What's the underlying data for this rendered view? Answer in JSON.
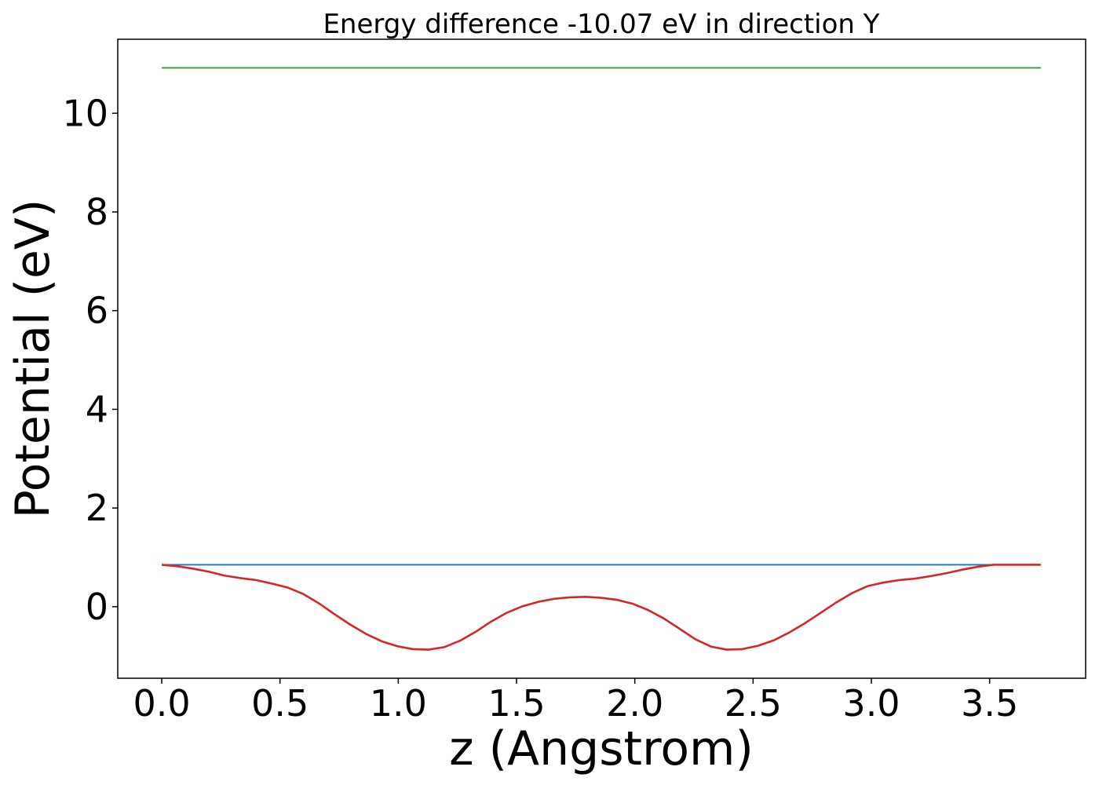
{
  "chart_data": {
    "type": "line",
    "title": "Energy difference -10.07 eV in direction Y",
    "xlabel": "z (Angstrom)",
    "ylabel": "Potential (eV)",
    "xlim": [
      -0.186,
      3.906
    ],
    "ylim": [
      -1.45,
      11.5
    ],
    "xticks": [
      "0.0",
      "0.5",
      "1.0",
      "1.5",
      "2.0",
      "2.5",
      "3.0",
      "3.5"
    ],
    "xtick_values": [
      0,
      0.5,
      1.0,
      1.5,
      2.0,
      2.5,
      3.0,
      3.5
    ],
    "yticks": [
      "0",
      "2",
      "4",
      "6",
      "8",
      "10"
    ],
    "ytick_values": [
      0,
      2,
      4,
      6,
      8,
      10
    ],
    "grid": false,
    "series": [
      {
        "color": "#d62728",
        "style": "curve",
        "x": [
          0.0,
          0.066,
          0.133,
          0.199,
          0.265,
          0.332,
          0.398,
          0.464,
          0.531,
          0.597,
          0.664,
          0.73,
          0.796,
          0.863,
          0.929,
          0.995,
          1.062,
          1.128,
          1.194,
          1.261,
          1.327,
          1.393,
          1.46,
          1.526,
          1.593,
          1.659,
          1.725,
          1.792,
          1.858,
          1.924,
          1.991,
          2.057,
          2.123,
          2.19,
          2.256,
          2.323,
          2.389,
          2.455,
          2.522,
          2.588,
          2.654,
          2.721,
          2.787,
          2.853,
          2.92,
          2.986,
          3.052,
          3.119,
          3.185,
          3.252,
          3.318,
          3.384,
          3.451,
          3.517,
          3.583,
          3.65,
          3.716
        ],
        "y": [
          0.85,
          0.82,
          0.77,
          0.71,
          0.63,
          0.58,
          0.54,
          0.47,
          0.39,
          0.26,
          0.07,
          -0.15,
          -0.36,
          -0.55,
          -0.7,
          -0.8,
          -0.86,
          -0.87,
          -0.82,
          -0.69,
          -0.51,
          -0.3,
          -0.12,
          0.01,
          0.1,
          0.16,
          0.19,
          0.2,
          0.18,
          0.14,
          0.06,
          -0.07,
          -0.24,
          -0.45,
          -0.66,
          -0.81,
          -0.87,
          -0.86,
          -0.79,
          -0.68,
          -0.52,
          -0.33,
          -0.12,
          0.09,
          0.28,
          0.42,
          0.49,
          0.54,
          0.57,
          0.62,
          0.68,
          0.75,
          0.81,
          0.85,
          0.85,
          0.85,
          0.85
        ]
      },
      {
        "color": "#1f77b4",
        "style": "flat",
        "x": [
          0.0,
          3.716
        ],
        "y": [
          0.85,
          0.85
        ]
      },
      {
        "color": "#2ca02c",
        "style": "flat",
        "x": [
          0.0,
          3.716
        ],
        "y": [
          10.92,
          10.92
        ]
      }
    ]
  }
}
